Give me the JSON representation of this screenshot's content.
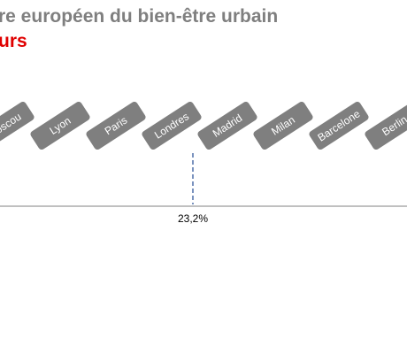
{
  "title": {
    "line1": "re européen du bien-être urbain",
    "line2": "urs"
  },
  "chart_data": {
    "type": "other",
    "categories": [
      "Moscou",
      "Lyon",
      "Paris",
      "Londres",
      "Madrid",
      "Milan",
      "Barcelone",
      "Berlin"
    ],
    "marker": {
      "category": "Londres",
      "label": "23,2%"
    },
    "colors": {
      "tag_fill": "#7f7f7f",
      "axis": "#808080",
      "marker_line": "#4f6fa8",
      "title_gray": "#7f7f7f",
      "title_red": "#e00000"
    }
  }
}
